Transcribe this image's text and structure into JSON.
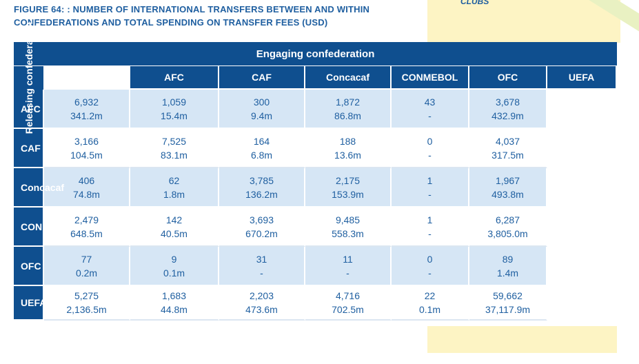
{
  "figure_title": "FIGURE 64: : NUMBER OF INTERNATIONAL TRANSFERS BETWEEN AND WITHIN CONFEDERATIONS AND TOTAL SPENDING ON TRANSFER FEES (USD)",
  "side_label": "CLUBS",
  "colors": {
    "header_blue": "#0f4f8f",
    "text_blue": "#1f5fa0",
    "cell_blue": "#d6e6f5",
    "highlight_yellow": "#fdf4c4"
  },
  "table": {
    "engaging_header": "Engaging confederation",
    "releasing_header": "Releasing confederation",
    "columns": [
      "AFC",
      "CAF",
      "Concacaf",
      "CONMEBOL",
      "OFC",
      "UEFA"
    ],
    "rows": [
      {
        "label": "AFC",
        "cells": [
          {
            "count": "6,932",
            "fee": "341.2m"
          },
          {
            "count": "1,059",
            "fee": "15.4m"
          },
          {
            "count": "300",
            "fee": "9.4m"
          },
          {
            "count": "1,872",
            "fee": "86.8m"
          },
          {
            "count": "43",
            "fee": "-"
          },
          {
            "count": "3,678",
            "fee": "432.9m"
          }
        ]
      },
      {
        "label": "CAF",
        "cells": [
          {
            "count": "3,166",
            "fee": "104.5m"
          },
          {
            "count": "7,525",
            "fee": "83.1m"
          },
          {
            "count": "164",
            "fee": "6.8m"
          },
          {
            "count": "188",
            "fee": "13.6m"
          },
          {
            "count": "0",
            "fee": "-"
          },
          {
            "count": "4,037",
            "fee": "317.5m"
          }
        ]
      },
      {
        "label": "Concacaf",
        "cells": [
          {
            "count": "406",
            "fee": "74.8m"
          },
          {
            "count": "62",
            "fee": "1.8m"
          },
          {
            "count": "3,785",
            "fee": "136.2m"
          },
          {
            "count": "2,175",
            "fee": "153.9m"
          },
          {
            "count": "1",
            "fee": "-"
          },
          {
            "count": "1,967",
            "fee": "493.8m"
          }
        ]
      },
      {
        "label": "CONMEBOL",
        "cells": [
          {
            "count": "2,479",
            "fee": "648.5m"
          },
          {
            "count": "142",
            "fee": "40.5m"
          },
          {
            "count": "3,693",
            "fee": "670.2m"
          },
          {
            "count": "9,485",
            "fee": "558.3m"
          },
          {
            "count": "1",
            "fee": "-"
          },
          {
            "count": "6,287",
            "fee": "3,805.0m"
          }
        ]
      },
      {
        "label": "OFC",
        "cells": [
          {
            "count": "77",
            "fee": "0.2m"
          },
          {
            "count": "9",
            "fee": "0.1m"
          },
          {
            "count": "31",
            "fee": "-"
          },
          {
            "count": "11",
            "fee": "-"
          },
          {
            "count": "0",
            "fee": "-"
          },
          {
            "count": "89",
            "fee": "1.4m"
          }
        ]
      },
      {
        "label": "UEFA",
        "cells": [
          {
            "count": "5,275",
            "fee": "2,136.5m"
          },
          {
            "count": "1,683",
            "fee": "44.8m"
          },
          {
            "count": "2,203",
            "fee": "473.6m"
          },
          {
            "count": "4,716",
            "fee": "702.5m"
          },
          {
            "count": "22",
            "fee": "0.1m"
          },
          {
            "count": "59,662",
            "fee": "37,117.9m"
          }
        ]
      }
    ]
  }
}
